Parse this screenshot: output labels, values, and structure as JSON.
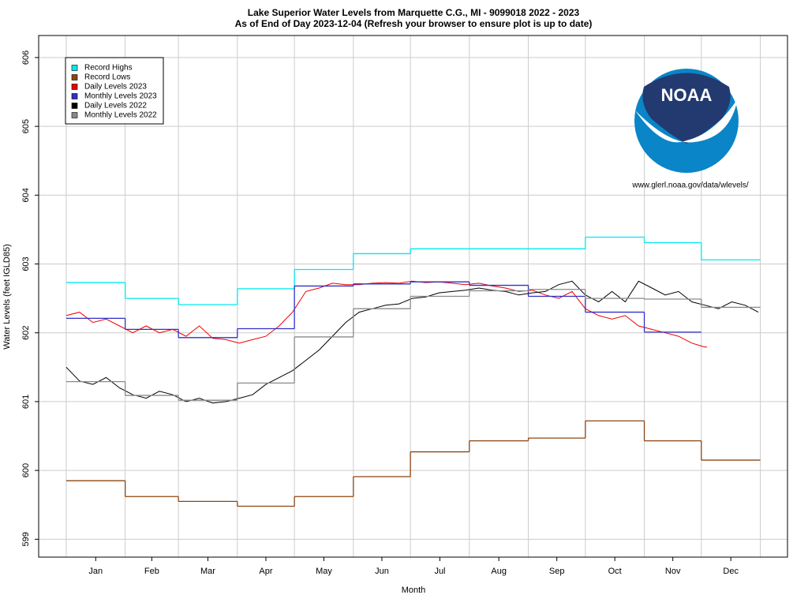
{
  "chart_data": {
    "type": "line",
    "title": "Lake Superior Water Levels from Marquette C.G., MI - 9099018 2022 - 2023",
    "subtitle": "As of End of Day 2023-12-04 (Refresh your browser to ensure plot is up to date)",
    "xlabel": "Month",
    "ylabel": "Water Levels (feet IGLD85)",
    "logo_text": "NOAA",
    "source": "www.glerl.noaa.gov/data/wlevels/",
    "legend": "upper left",
    "grid": true,
    "xlim": [
      -14.5,
      379.3
    ],
    "ylim": [
      598.74,
      606.32
    ],
    "yticks": [
      599,
      600,
      601,
      602,
      603,
      604,
      605,
      606
    ],
    "xticks": [
      {
        "value": 15.5,
        "label": "Jan"
      },
      {
        "value": 45,
        "label": "Feb"
      },
      {
        "value": 74.5,
        "label": "Mar"
      },
      {
        "value": 105,
        "label": "Apr"
      },
      {
        "value": 135.5,
        "label": "May"
      },
      {
        "value": 166,
        "label": "Jun"
      },
      {
        "value": 196.5,
        "label": "Jul"
      },
      {
        "value": 227.5,
        "label": "Aug"
      },
      {
        "value": 258,
        "label": "Sep"
      },
      {
        "value": 288.5,
        "label": "Oct"
      },
      {
        "value": 319,
        "label": "Nov"
      },
      {
        "value": 349.5,
        "label": "Dec"
      }
    ],
    "month_edges": [
      0,
      31,
      59,
      90,
      120,
      151,
      181,
      212,
      243,
      273,
      304,
      334,
      365
    ],
    "series": [
      {
        "name": "Record Highs",
        "kind": "step",
        "color": "#00e8f0",
        "values": [
          602.73,
          602.5,
          602.41,
          602.64,
          602.92,
          603.15,
          603.22,
          603.22,
          603.22,
          603.39,
          603.31,
          603.06
        ]
      },
      {
        "name": "Record Lows",
        "kind": "step",
        "color": "#8b4513",
        "values": [
          599.85,
          599.62,
          599.55,
          599.48,
          599.62,
          599.91,
          600.27,
          600.43,
          600.47,
          600.72,
          600.43,
          600.15
        ]
      },
      {
        "name": "Daily Levels 2023",
        "kind": "daily",
        "color": "#ee0000",
        "x": [
          0,
          7,
          14,
          21,
          28,
          35,
          42,
          49,
          56,
          63,
          70,
          77,
          84,
          91,
          98,
          105,
          112,
          119,
          126,
          133,
          140,
          147,
          154,
          161,
          168,
          175,
          182,
          189,
          196,
          203,
          210,
          217,
          224,
          231,
          238,
          245,
          252,
          259,
          266,
          273,
          280,
          287,
          294,
          301,
          308,
          315,
          322,
          329,
          335,
          337
        ],
        "values": [
          602.25,
          602.3,
          602.15,
          602.2,
          602.1,
          602.0,
          602.1,
          602.0,
          602.05,
          601.95,
          602.1,
          601.92,
          601.9,
          601.85,
          601.9,
          601.95,
          602.1,
          602.3,
          602.6,
          602.65,
          602.72,
          602.7,
          602.7,
          602.72,
          602.73,
          602.72,
          602.75,
          602.73,
          602.74,
          602.72,
          602.7,
          602.72,
          602.68,
          602.65,
          602.6,
          602.62,
          602.55,
          602.5,
          602.6,
          602.35,
          602.25,
          602.2,
          602.25,
          602.1,
          602.05,
          602.0,
          601.95,
          601.85,
          601.8,
          601.79
        ]
      },
      {
        "name": "Monthly Levels 2023",
        "kind": "step",
        "color": "#3030c8",
        "values": [
          602.21,
          602.05,
          601.93,
          602.06,
          602.68,
          602.71,
          602.74,
          602.69,
          602.53,
          602.3,
          602.01,
          null
        ]
      },
      {
        "name": "Daily Levels 2022",
        "kind": "daily",
        "color": "#000000",
        "x": [
          0,
          7,
          14,
          21,
          28,
          35,
          42,
          49,
          56,
          63,
          70,
          77,
          84,
          91,
          98,
          105,
          112,
          119,
          126,
          133,
          140,
          147,
          154,
          161,
          168,
          175,
          182,
          189,
          196,
          203,
          210,
          217,
          224,
          231,
          238,
          245,
          252,
          259,
          266,
          273,
          280,
          287,
          294,
          301,
          308,
          315,
          322,
          329,
          336,
          343,
          350,
          357,
          364
        ],
        "values": [
          601.5,
          601.3,
          601.25,
          601.35,
          601.2,
          601.1,
          601.05,
          601.15,
          601.1,
          601.0,
          601.05,
          600.98,
          601.0,
          601.05,
          601.1,
          601.25,
          601.35,
          601.45,
          601.6,
          601.75,
          601.95,
          602.15,
          602.3,
          602.35,
          602.4,
          602.42,
          602.5,
          602.52,
          602.58,
          602.6,
          602.62,
          602.65,
          602.62,
          602.6,
          602.55,
          602.58,
          602.6,
          602.7,
          602.75,
          602.55,
          602.45,
          602.6,
          602.45,
          602.75,
          602.65,
          602.55,
          602.6,
          602.45,
          602.4,
          602.35,
          602.45,
          602.4,
          602.3
        ]
      },
      {
        "name": "Monthly Levels 2022",
        "kind": "step",
        "color": "#8a8a8a",
        "values": [
          601.29,
          601.09,
          601.02,
          601.27,
          601.94,
          602.35,
          602.53,
          602.61,
          602.63,
          602.5,
          602.49,
          602.37
        ]
      }
    ]
  }
}
